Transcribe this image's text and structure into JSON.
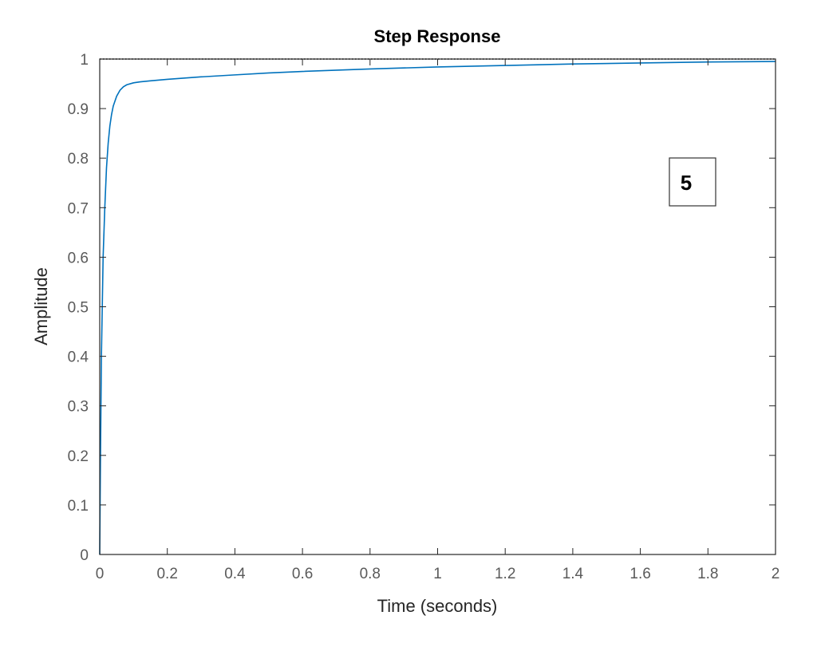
{
  "chart_data": {
    "type": "line",
    "title": "Step Response",
    "xlabel": "Time (seconds)",
    "ylabel": "Amplitude",
    "xlim": [
      0,
      2
    ],
    "ylim": [
      0,
      1
    ],
    "x_ticks": [
      0,
      0.2,
      0.4,
      0.6,
      0.8,
      1,
      1.2,
      1.4,
      1.6,
      1.8,
      2
    ],
    "x_tick_labels": [
      "0",
      "0.2",
      "0.4",
      "0.6",
      "0.8",
      "1",
      "1.2",
      "1.4",
      "1.6",
      "1.8",
      "2"
    ],
    "y_ticks": [
      0,
      0.1,
      0.2,
      0.3,
      0.4,
      0.5,
      0.6,
      0.7,
      0.8,
      0.9,
      1
    ],
    "y_tick_labels": [
      "0",
      "0.1",
      "0.2",
      "0.3",
      "0.4",
      "0.5",
      "0.6",
      "0.7",
      "0.8",
      "0.9",
      "1"
    ],
    "grid": false,
    "reference_line": {
      "y": 1,
      "style": "dotted",
      "color": "#000000"
    },
    "series": [
      {
        "color": "#0072bd",
        "x": [
          0,
          0.002,
          0.005,
          0.01,
          0.015,
          0.02,
          0.025,
          0.03,
          0.035,
          0.04,
          0.05,
          0.06,
          0.07,
          0.08,
          0.1,
          0.12,
          0.15,
          0.2,
          0.3,
          0.4,
          0.5,
          0.6,
          0.8,
          1.0,
          1.2,
          1.4,
          1.6,
          1.8,
          2.0
        ],
        "y": [
          0,
          0.18,
          0.4,
          0.6,
          0.7,
          0.78,
          0.83,
          0.865,
          0.888,
          0.905,
          0.925,
          0.937,
          0.944,
          0.948,
          0.952,
          0.954,
          0.956,
          0.959,
          0.964,
          0.968,
          0.972,
          0.975,
          0.98,
          0.984,
          0.987,
          0.99,
          0.992,
          0.994,
          0.995
        ]
      }
    ],
    "annotation": {
      "text": "5",
      "position": "top-right"
    }
  }
}
